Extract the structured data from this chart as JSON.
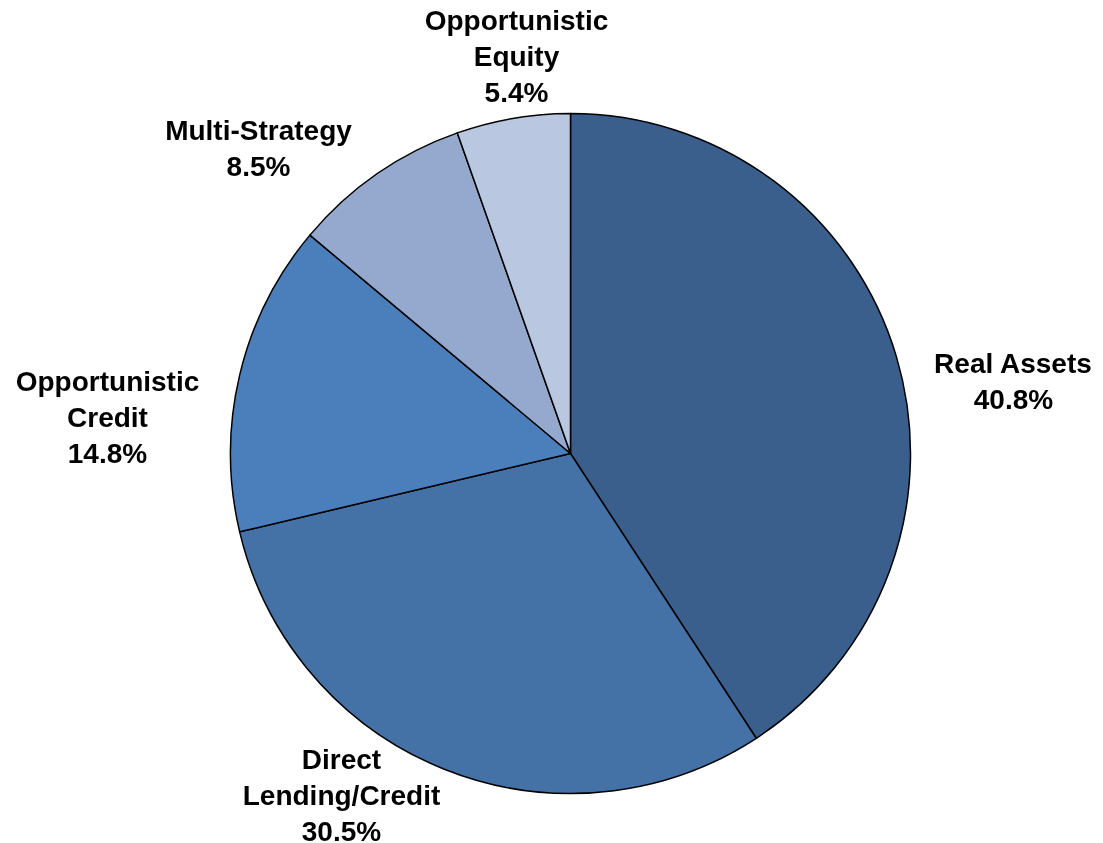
{
  "chart_data": {
    "type": "pie",
    "categories": [
      "Real Assets",
      "Direct Lending/Credit",
      "Opportunistic Credit",
      "Multi-Strategy",
      "Opportunistic Equity"
    ],
    "values": [
      40.8,
      30.5,
      14.8,
      8.5,
      5.4
    ],
    "colors": [
      "#3a5f8c",
      "#4472a6",
      "#4a7fbc",
      "#95a9cf",
      "#b9c7e0"
    ],
    "value_labels": [
      "40.8%",
      "30.5%",
      "14.8%",
      "8.5%",
      "5.4%"
    ]
  }
}
